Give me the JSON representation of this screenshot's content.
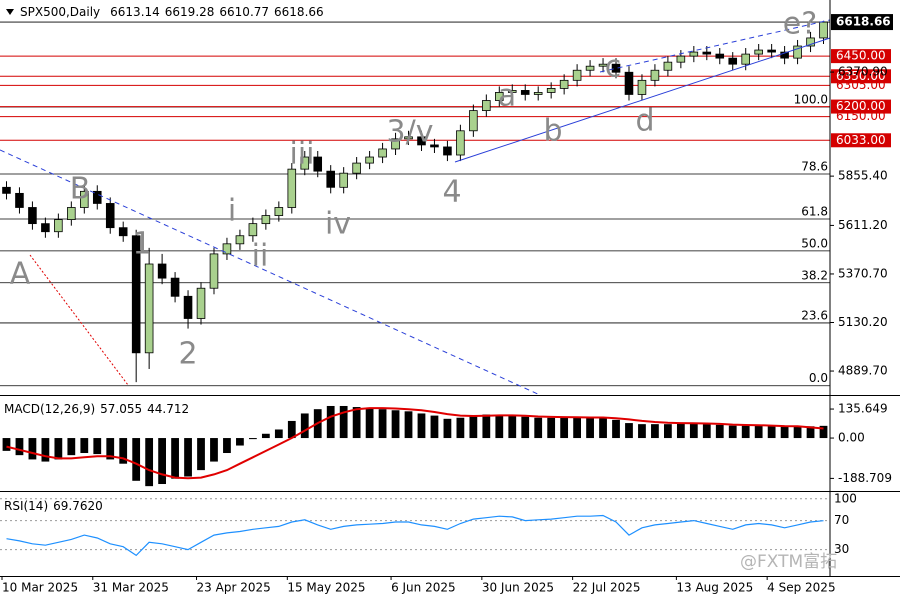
{
  "chart_data": [
    {
      "type": "candlestick",
      "title": "SPX500,Daily",
      "header_values": [
        6613.14,
        6619.28,
        6610.77,
        6618.66
      ],
      "last_price": {
        "value": 6618.66,
        "label": "6618.66"
      },
      "up_color": "#a9d18e",
      "down_color": "#000000",
      "categories": [
        "10 Mar 2025",
        null,
        null,
        null,
        null,
        null,
        null,
        "31 Mar 2025",
        null,
        null,
        null,
        null,
        null,
        null,
        null,
        "23 Apr 2025",
        null,
        null,
        null,
        null,
        null,
        null,
        "15 May 2025",
        null,
        null,
        null,
        null,
        null,
        null,
        null,
        "6 Jun 2025",
        null,
        null,
        null,
        null,
        null,
        null,
        "30 Jun 2025",
        null,
        null,
        null,
        null,
        null,
        null,
        "22 Jul 2025",
        null,
        null,
        null,
        null,
        null,
        null,
        null,
        "13 Aug 2025",
        null,
        null,
        null,
        null,
        null,
        null,
        "4 Sep 2025",
        null,
        null,
        null,
        null
      ],
      "ohlc": [
        [
          5800,
          5830,
          5740,
          5770
        ],
        [
          5770,
          5800,
          5670,
          5700
        ],
        [
          5700,
          5730,
          5590,
          5620
        ],
        [
          5620,
          5650,
          5550,
          5580
        ],
        [
          5580,
          5670,
          5550,
          5640
        ],
        [
          5640,
          5730,
          5610,
          5700
        ],
        [
          5700,
          5810,
          5670,
          5780
        ],
        [
          5780,
          5810,
          5690,
          5720
        ],
        [
          5720,
          5750,
          5570,
          5600
        ],
        [
          5600,
          5630,
          5530,
          5560
        ],
        [
          5560,
          5590,
          4835,
          4980
        ],
        [
          4980,
          5500,
          4900,
          5420
        ],
        [
          5420,
          5470,
          5320,
          5350
        ],
        [
          5350,
          5380,
          5230,
          5260
        ],
        [
          5260,
          5290,
          5100,
          5150
        ],
        [
          5150,
          5330,
          5120,
          5300
        ],
        [
          5300,
          5500,
          5270,
          5470
        ],
        [
          5470,
          5550,
          5440,
          5520
        ],
        [
          5520,
          5590,
          5490,
          5560
        ],
        [
          5560,
          5650,
          5530,
          5620
        ],
        [
          5620,
          5690,
          5590,
          5660
        ],
        [
          5660,
          5730,
          5630,
          5700
        ],
        [
          5700,
          5920,
          5670,
          5890
        ],
        [
          5890,
          5980,
          5860,
          5950
        ],
        [
          5950,
          5980,
          5850,
          5880
        ],
        [
          5880,
          5910,
          5770,
          5800
        ],
        [
          5800,
          5900,
          5770,
          5870
        ],
        [
          5870,
          5950,
          5840,
          5920
        ],
        [
          5920,
          5980,
          5890,
          5950
        ],
        [
          5950,
          6020,
          5920,
          5990
        ],
        [
          5990,
          6070,
          5960,
          6040
        ],
        [
          6040,
          6080,
          6010,
          6050
        ],
        [
          6050,
          6080,
          5980,
          6010
        ],
        [
          6010,
          6040,
          5970,
          6000
        ],
        [
          6000,
          6030,
          5930,
          5960
        ],
        [
          5960,
          6110,
          5930,
          6080
        ],
        [
          6080,
          6210,
          6050,
          6180
        ],
        [
          6180,
          6260,
          6150,
          6230
        ],
        [
          6230,
          6300,
          6200,
          6270
        ],
        [
          6270,
          6310,
          6240,
          6280
        ],
        [
          6280,
          6310,
          6230,
          6260
        ],
        [
          6260,
          6300,
          6230,
          6270
        ],
        [
          6270,
          6320,
          6240,
          6290
        ],
        [
          6290,
          6360,
          6260,
          6330
        ],
        [
          6330,
          6410,
          6300,
          6380
        ],
        [
          6380,
          6430,
          6350,
          6400
        ],
        [
          6400,
          6440,
          6370,
          6410
        ],
        [
          6410,
          6440,
          6340,
          6370
        ],
        [
          6370,
          6400,
          6230,
          6260
        ],
        [
          6260,
          6360,
          6230,
          6330
        ],
        [
          6330,
          6410,
          6300,
          6380
        ],
        [
          6380,
          6450,
          6350,
          6420
        ],
        [
          6420,
          6480,
          6390,
          6450
        ],
        [
          6450,
          6500,
          6420,
          6470
        ],
        [
          6470,
          6500,
          6430,
          6460
        ],
        [
          6460,
          6490,
          6410,
          6440
        ],
        [
          6440,
          6470,
          6380,
          6410
        ],
        [
          6410,
          6490,
          6380,
          6460
        ],
        [
          6460,
          6510,
          6430,
          6480
        ],
        [
          6480,
          6510,
          6440,
          6470
        ],
        [
          6470,
          6500,
          6410,
          6440
        ],
        [
          6440,
          6530,
          6410,
          6500
        ],
        [
          6500,
          6570,
          6470,
          6540
        ],
        [
          6540,
          6625,
          6510,
          6618.66
        ]
      ],
      "ylim": [
        4771,
        6728
      ],
      "yticks": [
        {
          "value": 6370.9,
          "label": "6370.90"
        },
        {
          "value": 5855.4,
          "label": "5855.40"
        },
        {
          "value": 5611.2,
          "label": "5611.20"
        },
        {
          "value": 5370.7,
          "label": "5370.70"
        },
        {
          "value": 5130.2,
          "label": "5130.20"
        },
        {
          "value": 4889.7,
          "label": "4889.70"
        }
      ],
      "levels": [
        {
          "value": 6450,
          "label": "6450.00"
        },
        {
          "value": 6350,
          "label": "6350.00"
        },
        {
          "value": 6200,
          "label": "6200.00"
        },
        {
          "value": 6033,
          "label": "6033.00"
        }
      ],
      "minor_levels": [
        {
          "value": 6305,
          "label": "6305.00"
        },
        {
          "value": 6150,
          "label": "6150.00"
        }
      ],
      "level_color": "#d40000",
      "fib_levels": [
        {
          "value": 6198,
          "label": "100.0"
        },
        {
          "value": 5866,
          "label": "78.6"
        },
        {
          "value": 5643,
          "label": "61.8"
        },
        {
          "value": 5485,
          "label": "50.0"
        },
        {
          "value": 5327,
          "label": "38.2"
        },
        {
          "value": 5128,
          "label": "23.6"
        },
        {
          "value": 4817,
          "label": "0.0"
        }
      ],
      "wave_labels": [
        "A",
        "B",
        "1",
        "2",
        "i",
        "ii",
        "iii",
        "iv",
        "3/v",
        "4",
        "a",
        "b",
        "c",
        "d",
        "e?"
      ]
    },
    {
      "type": "macd",
      "title": "MACD(12,26,9)",
      "current": [
        57.055,
        44.712
      ],
      "values": [
        -60,
        -80,
        -100,
        -110,
        -100,
        -80,
        -70,
        -75,
        -100,
        -120,
        -200,
        -225,
        -215,
        -190,
        -180,
        -150,
        -110,
        -70,
        -35,
        -5,
        20,
        40,
        80,
        115,
        135,
        150,
        150,
        145,
        140,
        135,
        130,
        125,
        115,
        105,
        90,
        95,
        105,
        110,
        110,
        105,
        100,
        95,
        95,
        95,
        95,
        95,
        95,
        85,
        70,
        65,
        65,
        65,
        68,
        68,
        65,
        62,
        58,
        58,
        58,
        55,
        52,
        52,
        55,
        57.055
      ],
      "signal": [
        -40,
        -55,
        -70,
        -85,
        -95,
        -95,
        -90,
        -85,
        -85,
        -95,
        -120,
        -150,
        -170,
        -185,
        -188,
        -185,
        -170,
        -150,
        -120,
        -90,
        -60,
        -30,
        0,
        35,
        70,
        100,
        120,
        135,
        140,
        140,
        138,
        135,
        130,
        122,
        112,
        105,
        103,
        104,
        106,
        106,
        104,
        101,
        99,
        98,
        97,
        96,
        96,
        93,
        87,
        80,
        75,
        72,
        70,
        69,
        68,
        66,
        63,
        61,
        60,
        58,
        56,
        55,
        50,
        44.712
      ],
      "color": "#000000",
      "signal_color": "#e00000",
      "ylim": [
        -243,
        192
      ],
      "yticks": [
        135.649,
        {
          "value": 0,
          "label": "0.00"
        },
        -188.709
      ]
    },
    {
      "type": "line",
      "title": "RSI(14)",
      "current": {
        "value": 69.762,
        "label": "69.7620"
      },
      "values": [
        45,
        42,
        38,
        36,
        40,
        44,
        50,
        46,
        38,
        34,
        22,
        40,
        38,
        34,
        30,
        40,
        50,
        53,
        55,
        58,
        60,
        62,
        68,
        71,
        64,
        58,
        62,
        64,
        65,
        66,
        68,
        68,
        64,
        62,
        58,
        66,
        72,
        74,
        76,
        75,
        70,
        71,
        72,
        74,
        76,
        76,
        77,
        68,
        50,
        60,
        64,
        66,
        68,
        70,
        66,
        62,
        58,
        64,
        66,
        64,
        60,
        64,
        68,
        69.762
      ],
      "color": "#1e90ff",
      "ylim": [
        -5,
        108
      ],
      "yticks": [
        100,
        70,
        30
      ],
      "grid": true
    }
  ],
  "watermark": "@FXTM富拓"
}
